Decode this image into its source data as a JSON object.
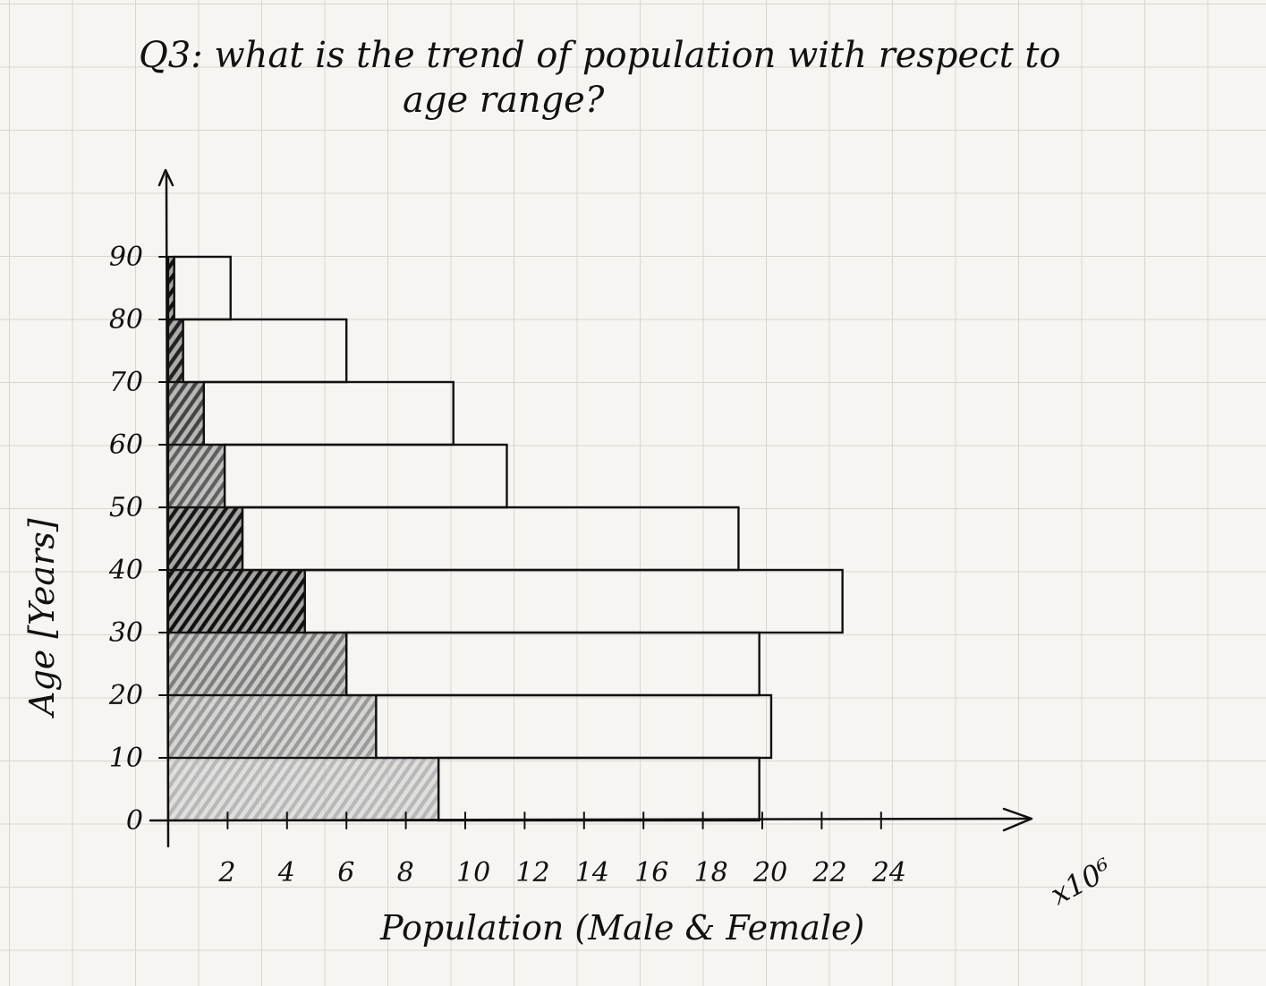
{
  "chart_data": {
    "type": "bar",
    "orientation": "horizontal",
    "stacked": true,
    "title": "Q3: what is the trend of population with respect to age range?",
    "xlabel": "Population (Male & Female)",
    "ylabel": "Age [Years]",
    "x_multiplier_label": "x10⁶",
    "x_ticks": [
      "2",
      "4",
      "6",
      "8",
      "10",
      "12",
      "14",
      "16",
      "18",
      "20",
      "22",
      "24"
    ],
    "y_ticks": [
      "0",
      "10",
      "20",
      "30",
      "40",
      "50",
      "60",
      "70",
      "80",
      "90"
    ],
    "xlim": [
      0,
      25
    ],
    "ylim": [
      0,
      100
    ],
    "categories": [
      "0-10",
      "10-20",
      "20-30",
      "30-40",
      "40-50",
      "50-60",
      "60-70",
      "70-80",
      "80-90"
    ],
    "series": [
      {
        "values": [
          9.1,
          7.0,
          6.0,
          4.6,
          2.5,
          1.9,
          1.2,
          0.5,
          0.2
        ]
      },
      {
        "values": [
          10.8,
          13.3,
          13.9,
          18.1,
          16.7,
          9.5,
          8.4,
          5.5,
          1.9
        ]
      }
    ],
    "shading": [
      "#b8b8b8",
      "#9a9a9a",
      "#7d7d7d",
      "#111111",
      "#161616",
      "#5f5f5f",
      "#444444",
      "#222222",
      "#111111"
    ],
    "grid": true
  }
}
